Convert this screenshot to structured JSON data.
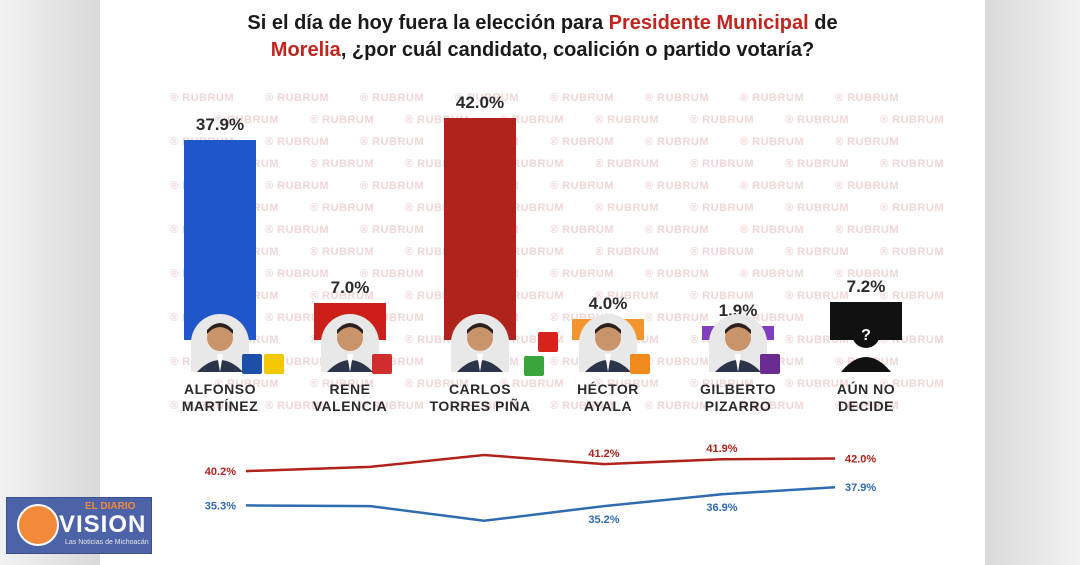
{
  "title": {
    "part1": "Si el día de hoy fuera la elección para ",
    "highlight1": "Presidente Municipal",
    "part2": " de",
    "highlight2": "Morelia",
    "part3": ", ¿por cuál candidato, coalición o partido votaría?"
  },
  "watermark_text": "RUBRUM",
  "colors": {
    "blue": "#1f56c9",
    "red": "#b0231c",
    "orange": "#f2952f",
    "purple": "#7f3fbf",
    "black": "#111111",
    "highlight": "#c0261e"
  },
  "chart_data": [
    {
      "type": "bar",
      "categories": [
        "ALFONSO MARTÍNEZ",
        "RENE VALENCIA",
        "CARLOS TORRES PIÑA",
        "HÉCTOR AYALA",
        "GILBERTO PIZARRO",
        "AÚN NO DECIDE"
      ],
      "values": [
        37.9,
        7.0,
        42.0,
        4.0,
        1.9,
        7.2
      ],
      "value_labels": [
        "37.9%",
        "7.0%",
        "42.0%",
        "4.0%",
        "1.9%",
        "7.2%"
      ],
      "bar_colors": [
        "#1f56c9",
        "#cc1f1a",
        "#b0231c",
        "#f2952f",
        "#7f3fbf",
        "#111111"
      ],
      "ylim": [
        0,
        42.0
      ]
    },
    {
      "type": "line",
      "x": [
        "1",
        "2",
        "3",
        "4",
        "5",
        "6"
      ],
      "series": [
        {
          "color": "#b0231c",
          "values": [
            40.2,
            40.8,
            42.5,
            41.2,
            41.9,
            42.0
          ],
          "labels": [
            "40.2%",
            "",
            "",
            "41.2%",
            "41.9%",
            "42.0%"
          ]
        },
        {
          "color": "#2f6bb0",
          "values": [
            35.3,
            35.2,
            33.1,
            35.2,
            36.9,
            37.9
          ],
          "labels": [
            "35.3%",
            "",
            "",
            "35.2%",
            "36.9%",
            "37.9%"
          ]
        }
      ]
    }
  ],
  "candidates": [
    {
      "name_line1": "ALFONSO",
      "name_line2": "MARTÍNEZ",
      "parties": [
        "PAN",
        "PRD"
      ]
    },
    {
      "name_line1": "RENE",
      "name_line2": "VALENCIA",
      "parties": [
        "PRI"
      ]
    },
    {
      "name_line1": "CARLOS",
      "name_line2": "TORRES PIÑA",
      "parties": [
        "PT",
        "VERDE"
      ]
    },
    {
      "name_line1": "HÉCTOR",
      "name_line2": "AYALA",
      "parties": [
        "MC"
      ]
    },
    {
      "name_line1": "GILBERTO",
      "name_line2": "PIZARRO",
      "parties": [
        "PES"
      ]
    },
    {
      "name_line1": "AÚN NO",
      "name_line2": "DECIDE",
      "parties": []
    }
  ],
  "logo": {
    "top": "EL DIARIO",
    "main": "VISION",
    "sub": "Las Noticias de Michoacán"
  }
}
